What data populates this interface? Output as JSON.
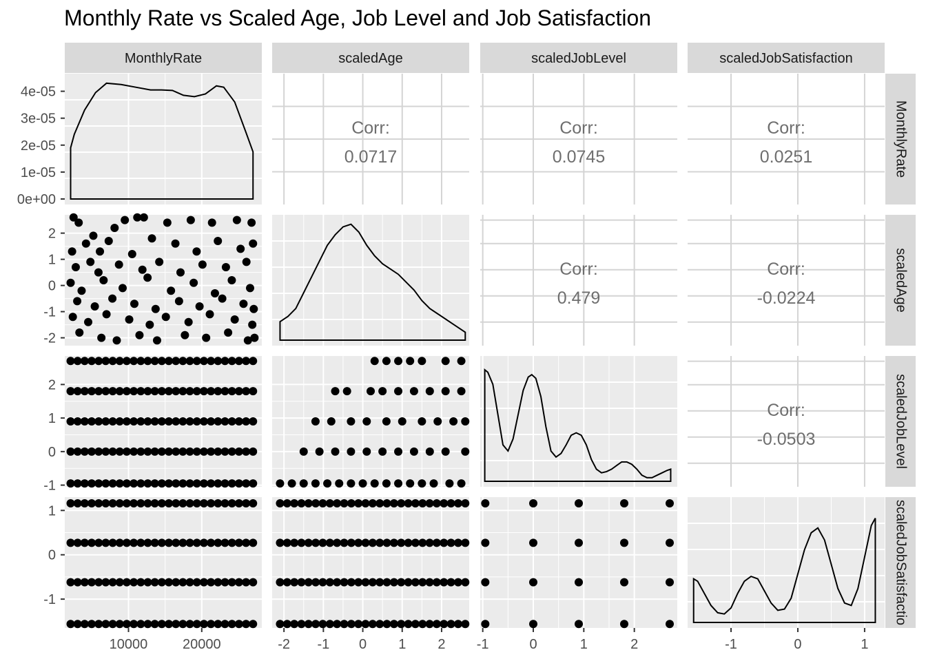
{
  "title": "Monthly Rate vs Scaled Age, Job Level and Job Satisfaction",
  "colors": {
    "panel_bg": "#ebebeb",
    "grid": "#ffffff",
    "strip_bg": "#d9d9d9",
    "corr_panel_grid": "#d4d4d4",
    "corr_text": "#6e6e6e",
    "points": "#000000",
    "axis_text": "#4d4d4d"
  },
  "chart_data": {
    "type": "scatter",
    "variables": [
      "MonthlyRate",
      "scaledAge",
      "scaledJobLevel",
      "scaledJobSatisfaction"
    ],
    "column_strips": [
      "MonthlyRate",
      "scaledAge",
      "scaledJobLevel",
      "scaledJobSatisfaction"
    ],
    "row_strips": [
      "MonthlyRate",
      "scaledAge",
      "scaledJobLevel",
      "scaledJobSatisfactio"
    ],
    "ranges": {
      "MonthlyRate": [
        1300,
        28200
      ],
      "scaledAge": [
        -2.3,
        2.7
      ],
      "scaledJobLevel": [
        -1.05,
        2.85
      ],
      "scaledJobSatisfaction": [
        -1.65,
        1.3
      ]
    },
    "x_ticks": {
      "MonthlyRate": [
        {
          "v": 10000,
          "label": "10000"
        },
        {
          "v": 20000,
          "label": "20000"
        }
      ],
      "scaledAge": [
        {
          "v": -2,
          "label": "-2"
        },
        {
          "v": -1,
          "label": "-1"
        },
        {
          "v": 0,
          "label": "0"
        },
        {
          "v": 1,
          "label": "1"
        },
        {
          "v": 2,
          "label": "2"
        }
      ],
      "scaledJobLevel": [
        {
          "v": -1,
          "label": "-1"
        },
        {
          "v": 0,
          "label": "0"
        },
        {
          "v": 1,
          "label": "1"
        },
        {
          "v": 2,
          "label": "2"
        }
      ],
      "scaledJobSatisfaction": [
        {
          "v": -1,
          "label": "-1"
        },
        {
          "v": 0,
          "label": "0"
        },
        {
          "v": 1,
          "label": "1"
        }
      ]
    },
    "y_ticks": {
      "MonthlyRate": [
        {
          "v": 0,
          "label": "0e+00"
        },
        {
          "v": 1e-05,
          "label": "1e-05"
        },
        {
          "v": 2e-05,
          "label": "2e-05"
        },
        {
          "v": 3e-05,
          "label": "3e-05"
        },
        {
          "v": 4e-05,
          "label": "4e-05"
        }
      ],
      "scaledAge": [
        {
          "v": -2,
          "label": "-2"
        },
        {
          "v": -1,
          "label": "-1"
        },
        {
          "v": 0,
          "label": "0"
        },
        {
          "v": 1,
          "label": "1"
        },
        {
          "v": 2,
          "label": "2"
        }
      ],
      "scaledJobLevel": [
        {
          "v": -1,
          "label": "-1"
        },
        {
          "v": 0,
          "label": "0"
        },
        {
          "v": 1,
          "label": "1"
        },
        {
          "v": 2,
          "label": "2"
        }
      ],
      "scaledJobSatisfaction": [
        {
          "v": -1,
          "label": "-1"
        },
        {
          "v": 0,
          "label": "0"
        },
        {
          "v": 1,
          "label": "1"
        }
      ]
    },
    "correlations": [
      {
        "row": "MonthlyRate",
        "col": "scaledAge",
        "label": "Corr:",
        "value": "0.0717"
      },
      {
        "row": "MonthlyRate",
        "col": "scaledJobLevel",
        "label": "Corr:",
        "value": "0.0745"
      },
      {
        "row": "MonthlyRate",
        "col": "scaledJobSatisfaction",
        "label": "Corr:",
        "value": "0.0251"
      },
      {
        "row": "scaledAge",
        "col": "scaledJobLevel",
        "label": "Corr:",
        "value": "0.479"
      },
      {
        "row": "scaledAge",
        "col": "scaledJobSatisfaction",
        "label": "Corr:",
        "value": "-0.0224"
      },
      {
        "row": "scaledJobLevel",
        "col": "scaledJobSatisfaction",
        "label": "Corr:",
        "value": "-0.0503"
      }
    ],
    "densities": {
      "MonthlyRate": {
        "ylim": [
          0,
          4.5e-05
        ],
        "x": [
          2100,
          2600,
          4000,
          5500,
          7000,
          9000,
          11000,
          13000,
          14500,
          16000,
          17500,
          19000,
          20500,
          22000,
          23000,
          24500,
          26000,
          27000
        ],
        "y": [
          1.9e-05,
          2.4e-05,
          3.3e-05,
          3.95e-05,
          4.3e-05,
          4.25e-05,
          4.15e-05,
          4.05e-05,
          4.05e-05,
          4.03e-05,
          3.85e-05,
          3.8e-05,
          3.9e-05,
          4.2e-05,
          4.15e-05,
          3.6e-05,
          2.5e-05,
          1.75e-05
        ]
      },
      "scaledAge": {
        "ylim": [
          0,
          0.46
        ],
        "x": [
          -2.1,
          -1.9,
          -1.7,
          -1.5,
          -1.3,
          -1.1,
          -0.9,
          -0.7,
          -0.5,
          -0.3,
          -0.1,
          0.1,
          0.3,
          0.5,
          0.7,
          0.9,
          1.1,
          1.3,
          1.5,
          1.7,
          1.9,
          2.1,
          2.3,
          2.6
        ],
        "y": [
          0.07,
          0.09,
          0.12,
          0.18,
          0.24,
          0.3,
          0.36,
          0.4,
          0.43,
          0.44,
          0.41,
          0.36,
          0.32,
          0.29,
          0.27,
          0.25,
          0.22,
          0.19,
          0.15,
          0.12,
          0.1,
          0.08,
          0.06,
          0.03
        ]
      },
      "scaledJobLevel": {
        "ylim": [
          0,
          1.0
        ],
        "x": [
          -0.96,
          -0.9,
          -0.8,
          -0.7,
          -0.6,
          -0.5,
          -0.4,
          -0.3,
          -0.2,
          -0.1,
          -0.03,
          0.05,
          0.15,
          0.25,
          0.35,
          0.45,
          0.55,
          0.65,
          0.75,
          0.85,
          0.95,
          1.05,
          1.15,
          1.25,
          1.35,
          1.45,
          1.55,
          1.65,
          1.75,
          1.85,
          1.95,
          2.05,
          2.15,
          2.25,
          2.35,
          2.45,
          2.55,
          2.65,
          2.72
        ],
        "y": [
          0.92,
          0.9,
          0.8,
          0.55,
          0.3,
          0.25,
          0.35,
          0.55,
          0.75,
          0.86,
          0.88,
          0.85,
          0.7,
          0.45,
          0.25,
          0.2,
          0.23,
          0.3,
          0.38,
          0.4,
          0.38,
          0.3,
          0.18,
          0.1,
          0.07,
          0.08,
          0.1,
          0.13,
          0.16,
          0.16,
          0.14,
          0.1,
          0.05,
          0.03,
          0.03,
          0.05,
          0.07,
          0.09,
          0.1
        ]
      },
      "scaledJobSatisfaction": {
        "ylim": [
          0,
          0.5
        ],
        "x": [
          -1.56,
          -1.5,
          -1.4,
          -1.3,
          -1.2,
          -1.1,
          -1.0,
          -0.9,
          -0.8,
          -0.7,
          -0.6,
          -0.5,
          -0.4,
          -0.3,
          -0.2,
          -0.1,
          0.0,
          0.1,
          0.2,
          0.3,
          0.4,
          0.5,
          0.6,
          0.7,
          0.8,
          0.9,
          1.0,
          1.1,
          1.16
        ],
        "y": [
          0.18,
          0.17,
          0.12,
          0.07,
          0.04,
          0.035,
          0.06,
          0.12,
          0.17,
          0.19,
          0.18,
          0.13,
          0.08,
          0.05,
          0.055,
          0.1,
          0.2,
          0.3,
          0.37,
          0.39,
          0.34,
          0.24,
          0.14,
          0.08,
          0.07,
          0.14,
          0.27,
          0.4,
          0.43
        ]
      }
    },
    "scatter_points": {
      "MonthlyRate_vs_scaledAge": [
        [
          2500,
          2.6
        ],
        [
          3200,
          2.4
        ],
        [
          5200,
          1.9
        ],
        [
          8100,
          2.2
        ],
        [
          9500,
          2.5
        ],
        [
          11200,
          2.6
        ],
        [
          12100,
          2.6
        ],
        [
          15300,
          2.4
        ],
        [
          18500,
          2.5
        ],
        [
          21400,
          2.4
        ],
        [
          24800,
          2.5
        ],
        [
          26800,
          2.4
        ],
        [
          2300,
          1.3
        ],
        [
          4200,
          1.6
        ],
        [
          6100,
          1.3
        ],
        [
          7300,
          1.7
        ],
        [
          10500,
          1.2
        ],
        [
          13200,
          1.8
        ],
        [
          16400,
          1.6
        ],
        [
          19300,
          1.3
        ],
        [
          22200,
          1.7
        ],
        [
          25300,
          1.4
        ],
        [
          27000,
          1.6
        ],
        [
          2800,
          0.7
        ],
        [
          4800,
          0.9
        ],
        [
          5900,
          0.5
        ],
        [
          8700,
          0.8
        ],
        [
          11900,
          0.6
        ],
        [
          14200,
          0.9
        ],
        [
          17100,
          0.5
        ],
        [
          20100,
          0.8
        ],
        [
          23300,
          0.7
        ],
        [
          26100,
          0.9
        ],
        [
          2100,
          0.1
        ],
        [
          3600,
          -0.2
        ],
        [
          6600,
          0.2
        ],
        [
          9200,
          -0.1
        ],
        [
          12600,
          0.3
        ],
        [
          15800,
          -0.2
        ],
        [
          18900,
          0.1
        ],
        [
          21800,
          -0.3
        ],
        [
          24100,
          0.2
        ],
        [
          26600,
          -0.1
        ],
        [
          3000,
          -0.6
        ],
        [
          5400,
          -0.8
        ],
        [
          7800,
          -0.5
        ],
        [
          10800,
          -0.7
        ],
        [
          13700,
          -0.9
        ],
        [
          16900,
          -0.6
        ],
        [
          19700,
          -0.8
        ],
        [
          22800,
          -0.5
        ],
        [
          25700,
          -0.7
        ],
        [
          27100,
          -0.9
        ],
        [
          2400,
          -1.2
        ],
        [
          4500,
          -1.4
        ],
        [
          7000,
          -1.1
        ],
        [
          10100,
          -1.3
        ],
        [
          12900,
          -1.5
        ],
        [
          15100,
          -1.2
        ],
        [
          18200,
          -1.4
        ],
        [
          21100,
          -1.1
        ],
        [
          24500,
          -1.3
        ],
        [
          26900,
          -1.5
        ],
        [
          3300,
          -1.8
        ],
        [
          6300,
          -2.0
        ],
        [
          8400,
          -2.1
        ],
        [
          11500,
          -1.9
        ],
        [
          13900,
          -2.1
        ],
        [
          17700,
          -1.9
        ],
        [
          20600,
          -2.0
        ],
        [
          23600,
          -1.8
        ],
        [
          26300,
          -2.1
        ],
        [
          27200,
          -2.0
        ]
      ],
      "scaledAge_vs_scaledJobLevel": [
        [
          0.3,
          2.7
        ],
        [
          0.6,
          2.7
        ],
        [
          0.9,
          2.7
        ],
        [
          1.2,
          2.7
        ],
        [
          1.5,
          2.7
        ],
        [
          2.1,
          2.7
        ],
        [
          2.5,
          2.7
        ],
        [
          -0.7,
          1.8
        ],
        [
          -0.4,
          1.8
        ],
        [
          0.2,
          1.8
        ],
        [
          0.5,
          1.8
        ],
        [
          0.9,
          1.8
        ],
        [
          1.3,
          1.8
        ],
        [
          1.7,
          1.8
        ],
        [
          2.1,
          1.8
        ],
        [
          2.5,
          1.8
        ],
        [
          -1.2,
          0.9
        ],
        [
          -0.8,
          0.9
        ],
        [
          -0.3,
          0.9
        ],
        [
          0.1,
          0.9
        ],
        [
          0.6,
          0.9
        ],
        [
          1.0,
          0.9
        ],
        [
          1.5,
          0.9
        ],
        [
          1.9,
          0.9
        ],
        [
          2.3,
          0.9
        ],
        [
          2.6,
          0.9
        ],
        [
          -1.5,
          0.0
        ],
        [
          -1.1,
          0.0
        ],
        [
          -0.7,
          0.0
        ],
        [
          -0.3,
          0.0
        ],
        [
          0.1,
          0.0
        ],
        [
          0.5,
          0.0
        ],
        [
          0.9,
          0.0
        ],
        [
          1.3,
          0.0
        ],
        [
          1.7,
          0.0
        ],
        [
          2.1,
          0.0
        ],
        [
          2.6,
          0.0
        ],
        [
          -2.1,
          -0.95
        ],
        [
          -1.8,
          -0.95
        ],
        [
          -1.5,
          -0.95
        ],
        [
          -1.2,
          -0.95
        ],
        [
          -0.9,
          -0.95
        ],
        [
          -0.6,
          -0.95
        ],
        [
          -0.3,
          -0.95
        ],
        [
          0.0,
          -0.95
        ],
        [
          0.3,
          -0.95
        ],
        [
          0.6,
          -0.95
        ],
        [
          0.9,
          -0.95
        ],
        [
          1.2,
          -0.95
        ],
        [
          1.5,
          -0.95
        ],
        [
          1.8,
          -0.95
        ],
        [
          2.2,
          -0.95
        ],
        [
          2.5,
          -0.95
        ]
      ]
    }
  }
}
